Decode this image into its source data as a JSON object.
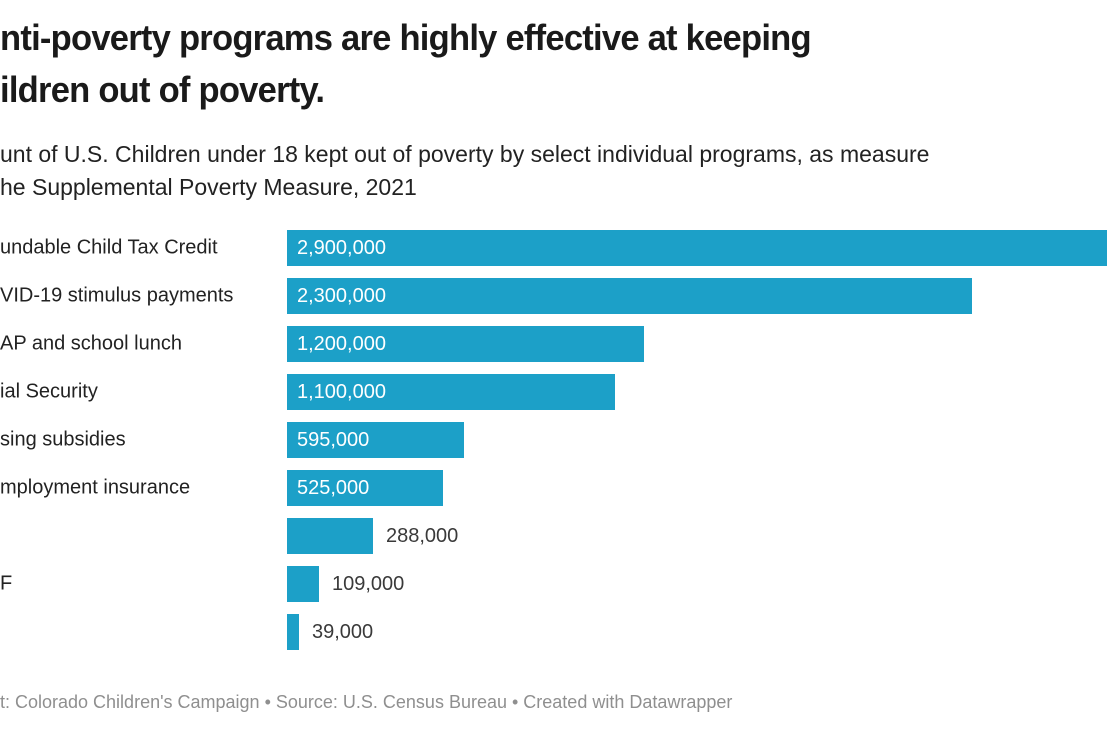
{
  "header": {
    "title_line1": "nti-poverty programs are highly effective at keeping",
    "title_line2": "ildren out of poverty.",
    "subtitle_line1": "unt of U.S. Children under 18 kept out of poverty by select individual programs, as measure",
    "subtitle_line2": "he Supplemental Poverty Measure, 2021"
  },
  "footer": {
    "text": "t: Colorado Children's Campaign • Source: U.S. Census Bureau • Created with Datawrapper"
  },
  "colors": {
    "bar": "#1CA0C8",
    "title": "#1a1a1a",
    "text": "#222222",
    "value_inside": "#ffffff",
    "value_outside": "#3a3a3a",
    "footer": "#8f8f8f"
  },
  "chart_data": {
    "type": "bar",
    "orientation": "horizontal",
    "title": "nti-poverty programs are highly effective at keeping ildren out of poverty.",
    "subtitle": "unt of U.S. Children under 18 kept out of poverty by select individual programs, as measure he Supplemental Poverty Measure, 2021",
    "categories": [
      "undable Child Tax Credit",
      "VID-19 stimulus payments",
      "AP and school lunch",
      "ial Security",
      "sing subsidies",
      "mployment insurance",
      "",
      "F",
      ""
    ],
    "values": [
      2900000,
      2300000,
      1200000,
      1100000,
      595000,
      525000,
      288000,
      109000,
      39000
    ],
    "value_labels": [
      "2,900,000",
      "2,300,000",
      "1,200,000",
      "1,100,000",
      "595,000",
      "525,000",
      "288,000",
      "109,000",
      "39,000"
    ],
    "xlim": [
      0,
      2900000
    ],
    "gridlines": false,
    "legend": "none",
    "bar_color": "#1CA0C8",
    "value_label_position_rule": "inside bar when bar is wide, outside right of bar when narrow",
    "first_bar_clipped_at_right_edge": true
  }
}
